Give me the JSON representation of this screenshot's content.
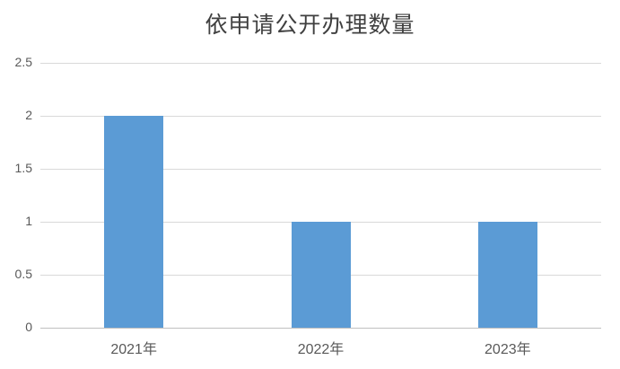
{
  "chart_data": {
    "type": "bar",
    "title": "依申请公开办理数量",
    "categories": [
      "2021年",
      "2022年",
      "2023年"
    ],
    "values": [
      2,
      1,
      1
    ],
    "xlabel": "",
    "ylabel": "",
    "ylim": [
      0,
      2.5
    ],
    "ytick_step": 0.5,
    "ytick_labels": [
      "0",
      "0.5",
      "1",
      "1.5",
      "2",
      "2.5"
    ],
    "grid": true,
    "legend": false,
    "colors": {
      "bar": "#5b9bd5",
      "gridline": "#d9d9d9",
      "axis_line": "#bfbfbf",
      "tick_label": "#595959",
      "title": "#404040",
      "background": "#ffffff"
    }
  }
}
